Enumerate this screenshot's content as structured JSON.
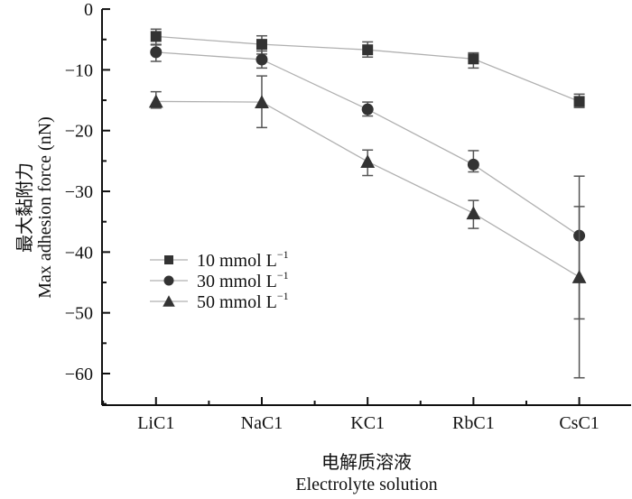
{
  "chart_data": {
    "type": "line",
    "title": "",
    "xlabel_cn": "电解质溶液",
    "xlabel": "Electrolyte solution",
    "ylabel_cn": "最大黏附力",
    "ylabel": "Max adhesion force (nN)",
    "categories": [
      "LiC1",
      "NaC1",
      "KC1",
      "RbC1",
      "CsC1"
    ],
    "xlim": [
      0.49,
      5.49
    ],
    "ylim": [
      -65.2,
      1.5
    ],
    "yticks": [
      0,
      -10,
      -20,
      -30,
      -40,
      -50,
      -60
    ],
    "ytick_labels": [
      "0",
      "−10",
      "−20",
      "−30",
      "−40",
      "−50",
      "−60"
    ],
    "grid": false,
    "legend_position": "lower-left",
    "series": [
      {
        "name": "10 mmol L",
        "name_sup": "−1",
        "marker": "square",
        "values": [
          -4.5,
          -5.8,
          -6.7,
          -8.2,
          -15.2
        ],
        "err_low": [
          -5.8,
          -7.4,
          -7.9,
          -9.7,
          -16.2
        ],
        "err_high": [
          -3.3,
          -4.4,
          -5.4,
          -7.2,
          -14.0
        ]
      },
      {
        "name": "30 mmol L",
        "name_sup": "−1",
        "marker": "circle",
        "values": [
          -7.1,
          -8.3,
          -16.5,
          -25.6,
          -37.3
        ],
        "err_low": [
          -8.6,
          -9.7,
          -17.6,
          -26.8,
          -51.0
        ],
        "err_high": [
          -5.9,
          -6.9,
          -15.3,
          -23.3,
          -32.5
        ]
      },
      {
        "name": "50 mmol L",
        "name_sup": "−1",
        "marker": "triangle",
        "values": [
          -15.2,
          -15.3,
          -25.1,
          -33.6,
          -44.1
        ],
        "err_low": [
          -16.3,
          -19.5,
          -27.4,
          -36.1,
          -60.7
        ],
        "err_high": [
          -13.6,
          -11.0,
          -23.2,
          -31.5,
          -27.5
        ]
      }
    ],
    "colors": {
      "marker": "#333333",
      "line": "#b0b0b0",
      "errorbar": "#555555",
      "axis": "#111111"
    }
  }
}
